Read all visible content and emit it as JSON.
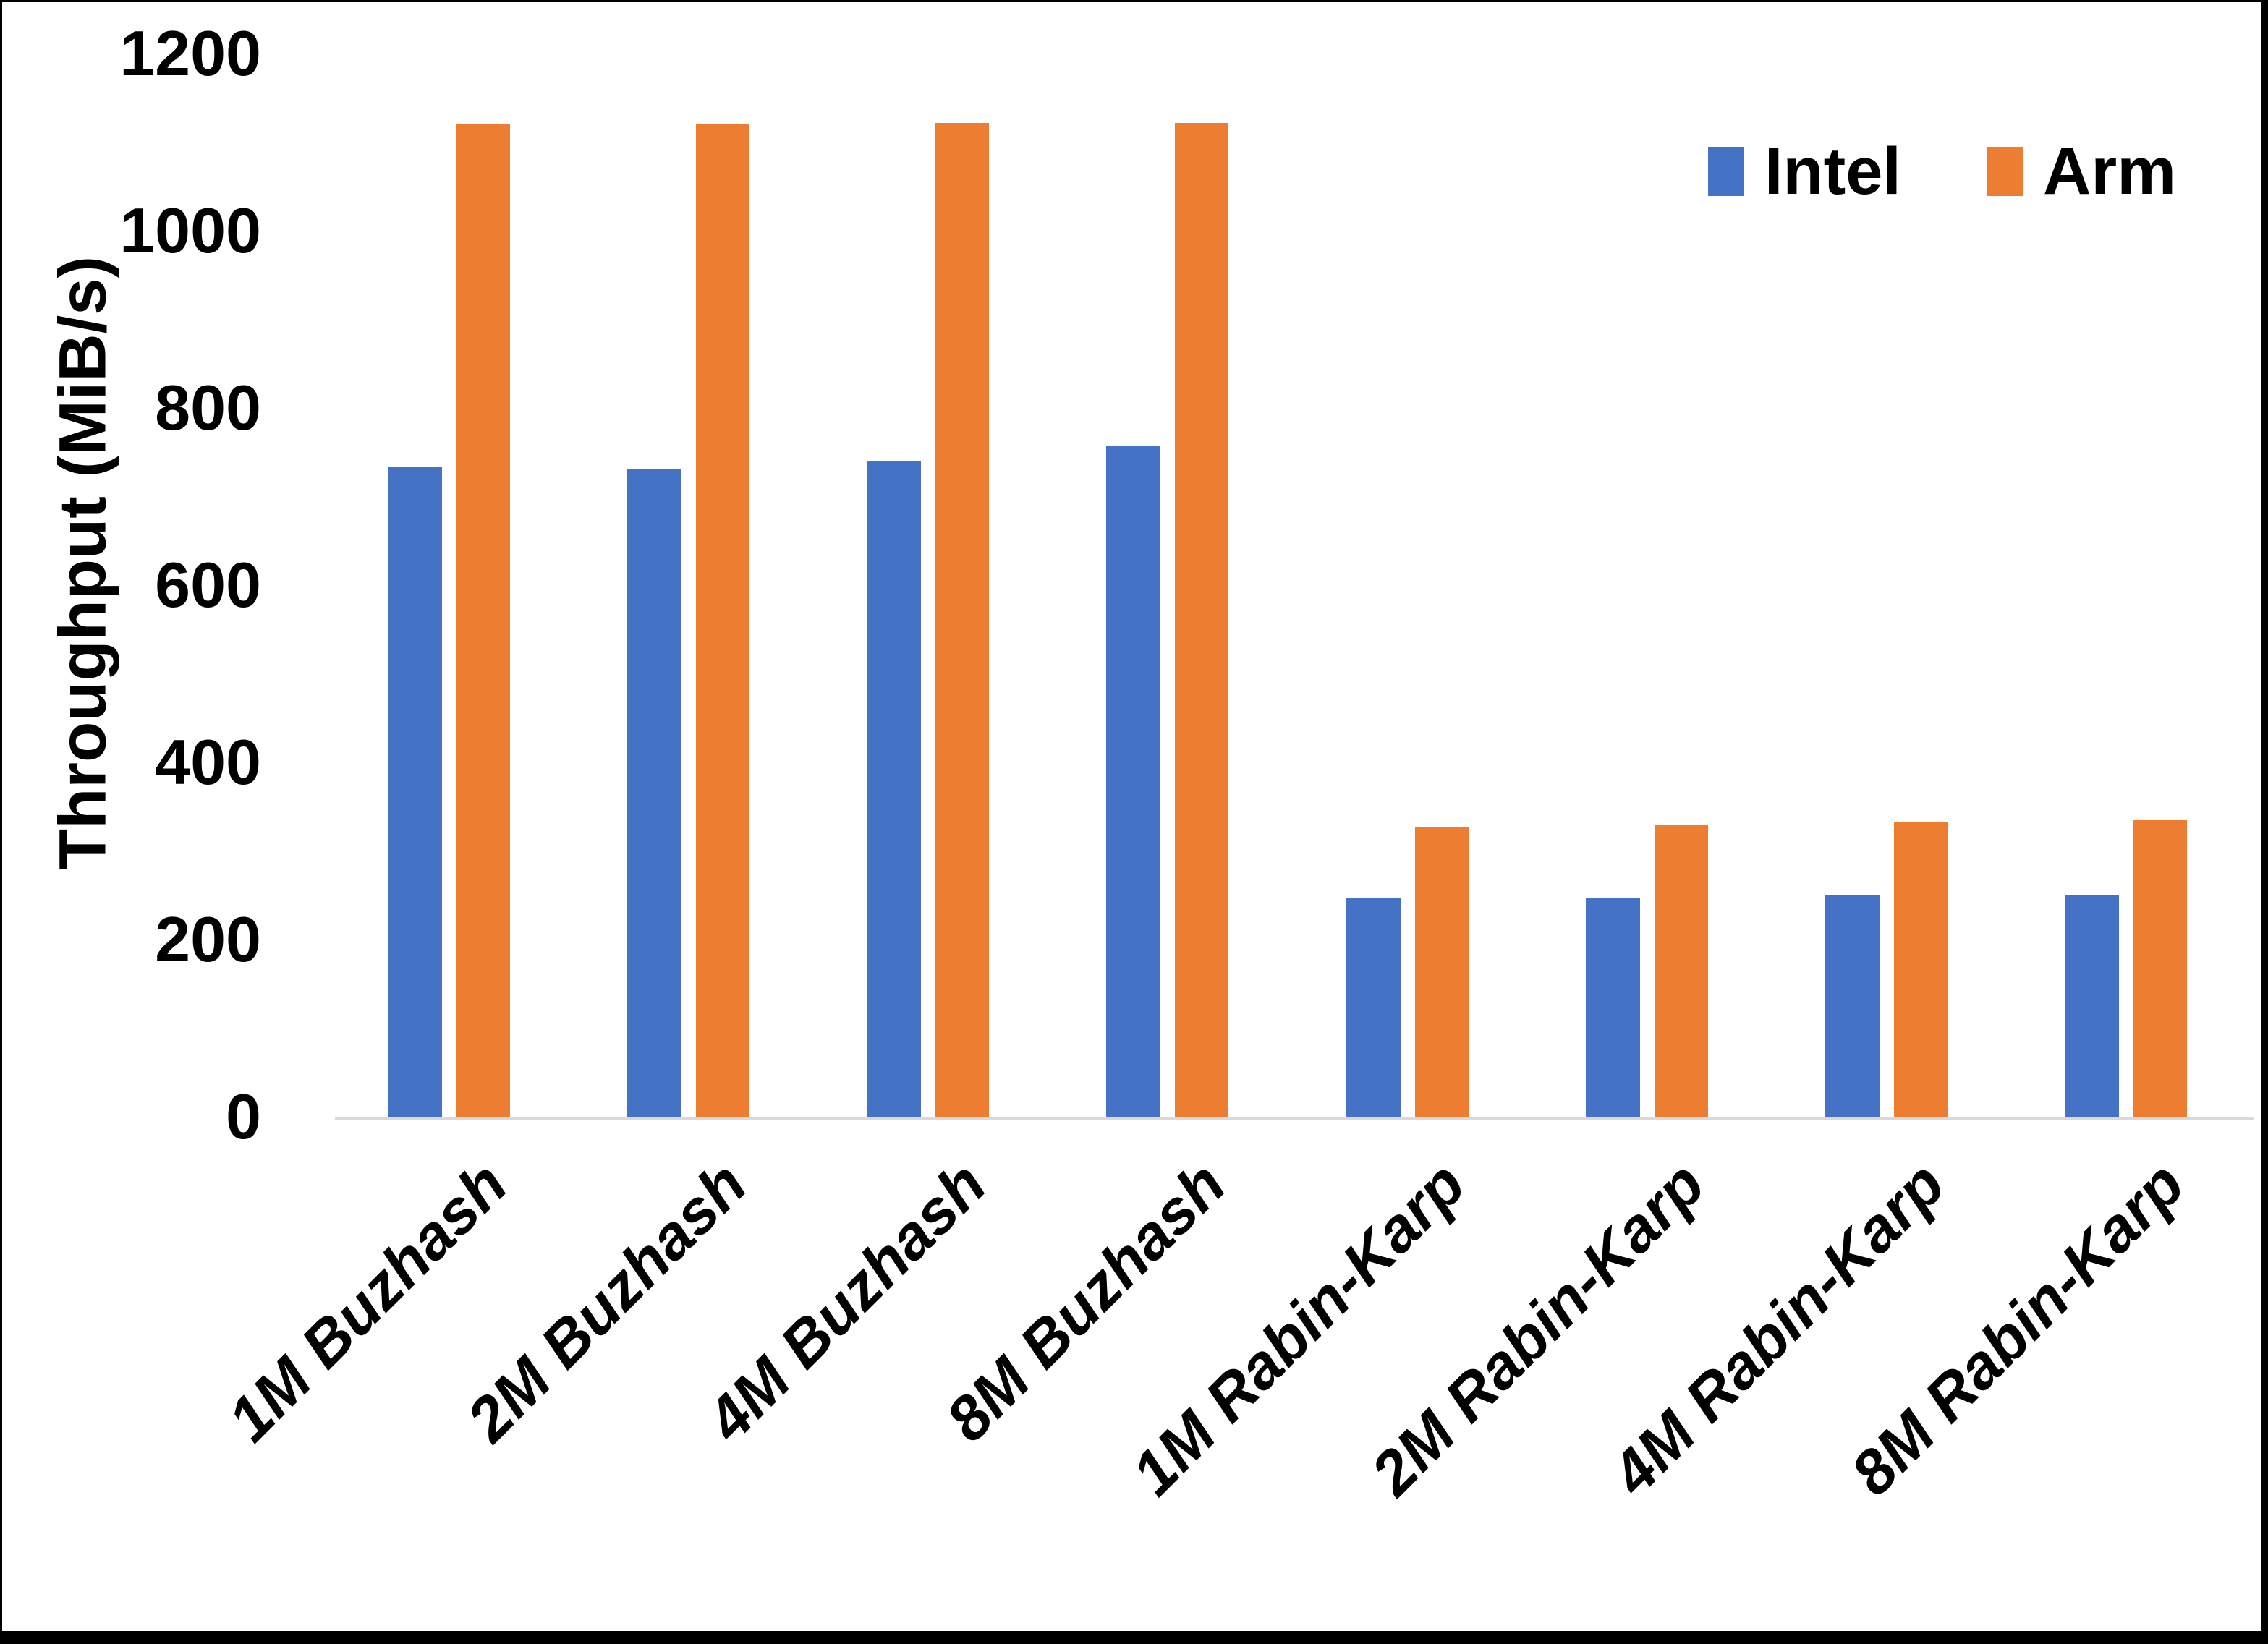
{
  "chart_data": {
    "type": "bar",
    "title": "",
    "xlabel": "",
    "ylabel": "Throughput (MiB/s)",
    "ylim": [
      0,
      1200
    ],
    "yticks": [
      0,
      200,
      400,
      600,
      800,
      1000,
      1200
    ],
    "grid": false,
    "legend_position": "top-right",
    "categories": [
      "1M Buzhash",
      "2M Buzhash",
      "4M Buzhash",
      "8M Buzhash",
      "1M Rabin-Karp",
      "2M Rabin-Karp",
      "4M Rabin-Karp",
      "8M Rabin-Karp"
    ],
    "series": [
      {
        "name": "Intel",
        "color": "#4472C4",
        "values": [
          733,
          731,
          740,
          757,
          247,
          247,
          250,
          251
        ]
      },
      {
        "name": "Arm",
        "color": "#ED7D31",
        "values": [
          1121,
          1121,
          1122,
          1122,
          327,
          329,
          333,
          335
        ]
      }
    ],
    "axis_line_color": "#D9D9D9",
    "text_color": "#000000"
  }
}
